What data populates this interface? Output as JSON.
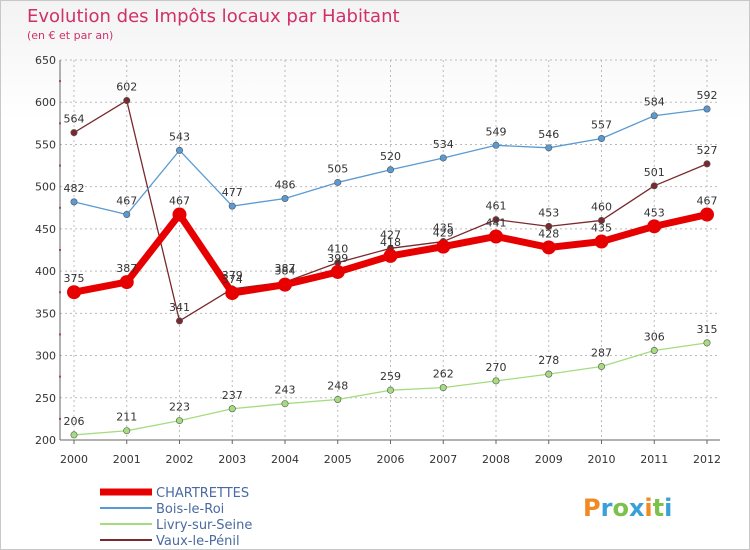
{
  "chart_data": {
    "type": "line",
    "title": "Evolution des Impôts locaux par Habitant",
    "subtitle": "(en € et par an)",
    "xlabel": "",
    "ylabel": "",
    "ylim": [
      200,
      650
    ],
    "yticks": [
      200,
      250,
      300,
      350,
      400,
      450,
      500,
      550,
      600,
      650
    ],
    "grid": true,
    "legend_position": "bottom-left",
    "categories": [
      "2000",
      "2001",
      "2002",
      "2003",
      "2004",
      "2005",
      "2006",
      "2007",
      "2008",
      "2009",
      "2010",
      "2011",
      "2012"
    ],
    "series": [
      {
        "name": "Vaux-le-Pénil",
        "color": "#7a2a2e",
        "values": [
          564,
          602,
          341,
          379,
          387,
          410,
          427,
          435,
          461,
          453,
          460,
          501,
          527
        ]
      },
      {
        "name": "Bois-le-Roi",
        "color": "#5a9ad2",
        "values": [
          482,
          467,
          543,
          477,
          486,
          505,
          520,
          534,
          549,
          546,
          557,
          584,
          592
        ]
      },
      {
        "name": "Livry-sur-Seine",
        "color": "#a6dc80",
        "values": [
          206,
          211,
          223,
          237,
          243,
          248,
          259,
          262,
          270,
          278,
          287,
          306,
          315
        ]
      },
      {
        "name": "CHARTRETTES",
        "color": "#e60000",
        "values": [
          375,
          387,
          467,
          374,
          384,
          399,
          418,
          429,
          441,
          428,
          435,
          453,
          467
        ]
      }
    ],
    "legend": [
      {
        "name": "CHARTRETTES",
        "color": "#e60000"
      },
      {
        "name": "Bois-le-Roi",
        "color": "#5a9ad2"
      },
      {
        "name": "Livry-sur-Seine",
        "color": "#a6dc80"
      },
      {
        "name": "Vaux-le-Pénil",
        "color": "#7a2a2e"
      }
    ]
  },
  "logo": {
    "text": "Proxiti"
  }
}
